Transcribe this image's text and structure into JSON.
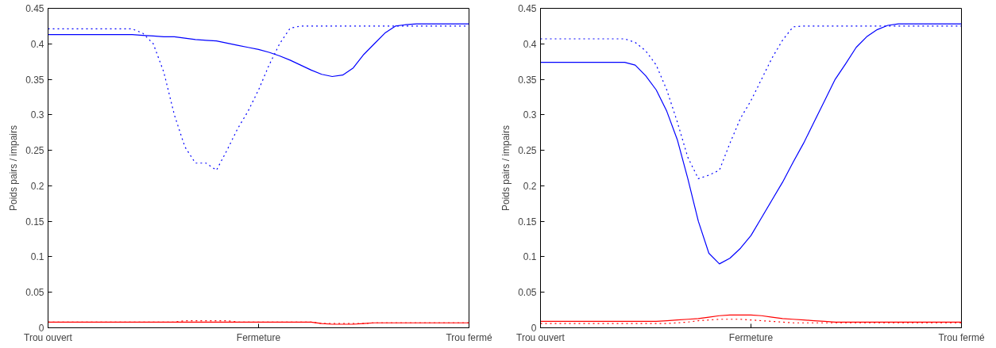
{
  "chart_data": [
    {
      "type": "line",
      "ylabel": "Poids pairs / impairs",
      "ylim": [
        0,
        0.45
      ],
      "categories": [
        "Trou ouvert",
        null,
        null,
        null,
        null,
        null,
        null,
        null,
        null,
        null,
        null,
        null,
        null,
        null,
        null,
        null,
        null,
        null,
        null,
        null,
        "Fermeture",
        null,
        null,
        null,
        null,
        null,
        null,
        null,
        null,
        null,
        null,
        null,
        null,
        null,
        null,
        null,
        null,
        null,
        null,
        null,
        "Trou fermé"
      ],
      "yticks": [
        0,
        0.05,
        0.1,
        0.15,
        0.2,
        0.25,
        0.3,
        0.35,
        0.4,
        0.45
      ],
      "grid": false,
      "marker": "none",
      "series": [
        {
          "color": "#0000ff",
          "line_style": "solid",
          "values": [
            0.413,
            0.413,
            0.413,
            0.413,
            0.413,
            0.413,
            0.413,
            0.413,
            0.413,
            0.412,
            0.411,
            0.41,
            0.41,
            0.408,
            0.406,
            0.405,
            0.404,
            0.401,
            0.398,
            0.395,
            0.392,
            0.388,
            0.383,
            0.377,
            0.37,
            0.363,
            0.357,
            0.354,
            0.356,
            0.366,
            0.385,
            0.4,
            0.415,
            0.425,
            0.427,
            0.428,
            0.428,
            0.428,
            0.428,
            0.428,
            0.428
          ]
        },
        {
          "color": "#0000ff",
          "line_style": "dotted",
          "values": [
            0.421,
            0.421,
            0.421,
            0.421,
            0.421,
            0.421,
            0.421,
            0.421,
            0.421,
            0.415,
            0.4,
            0.36,
            0.3,
            0.255,
            0.232,
            0.232,
            0.222,
            0.25,
            0.28,
            0.305,
            0.335,
            0.37,
            0.4,
            0.422,
            0.425,
            0.425,
            0.425,
            0.425,
            0.425,
            0.425,
            0.425,
            0.425,
            0.425,
            0.425,
            0.425,
            0.425,
            0.425,
            0.425,
            0.425,
            0.425,
            0.425
          ]
        },
        {
          "color": "#ff0000",
          "line_style": "solid",
          "values": [
            0.008,
            0.008,
            0.008,
            0.008,
            0.008,
            0.008,
            0.008,
            0.008,
            0.008,
            0.008,
            0.008,
            0.008,
            0.008,
            0.008,
            0.008,
            0.008,
            0.008,
            0.008,
            0.008,
            0.008,
            0.008,
            0.008,
            0.008,
            0.008,
            0.008,
            0.008,
            0.006,
            0.005,
            0.005,
            0.005,
            0.006,
            0.007,
            0.007,
            0.007,
            0.007,
            0.007,
            0.007,
            0.007,
            0.007,
            0.007,
            0.007
          ]
        },
        {
          "color": "#ff0000",
          "line_style": "dotted",
          "values": [
            0.008,
            0.008,
            0.008,
            0.008,
            0.008,
            0.008,
            0.008,
            0.008,
            0.008,
            0.008,
            0.008,
            0.008,
            0.008,
            0.01,
            0.01,
            0.01,
            0.01,
            0.01,
            0.008,
            0.008,
            0.008,
            0.008,
            0.008,
            0.008,
            0.008,
            0.008,
            0.006,
            0.006,
            0.006,
            0.006,
            0.006,
            0.007,
            0.007,
            0.007,
            0.007,
            0.007,
            0.007,
            0.007,
            0.007,
            0.007,
            0.007
          ]
        }
      ]
    },
    {
      "type": "line",
      "ylabel": "Poids pairs / impairs",
      "ylim": [
        0,
        0.45
      ],
      "categories": [
        "Trou ouvert",
        null,
        null,
        null,
        null,
        null,
        null,
        null,
        null,
        null,
        null,
        null,
        null,
        null,
        null,
        null,
        null,
        null,
        null,
        null,
        "Fermeture",
        null,
        null,
        null,
        null,
        null,
        null,
        null,
        null,
        null,
        null,
        null,
        null,
        null,
        null,
        null,
        null,
        null,
        null,
        null,
        "Trou fermé"
      ],
      "yticks": [
        0,
        0.05,
        0.1,
        0.15,
        0.2,
        0.25,
        0.3,
        0.35,
        0.4,
        0.45
      ],
      "grid": false,
      "marker": "none",
      "series": [
        {
          "color": "#0000ff",
          "line_style": "solid",
          "values": [
            0.374,
            0.374,
            0.374,
            0.374,
            0.374,
            0.374,
            0.374,
            0.374,
            0.374,
            0.37,
            0.355,
            0.335,
            0.305,
            0.265,
            0.21,
            0.15,
            0.105,
            0.09,
            0.098,
            0.112,
            0.13,
            0.155,
            0.18,
            0.205,
            0.233,
            0.26,
            0.29,
            0.32,
            0.35,
            0.372,
            0.395,
            0.41,
            0.42,
            0.426,
            0.428,
            0.428,
            0.428,
            0.428,
            0.428,
            0.428,
            0.428
          ]
        },
        {
          "color": "#0000ff",
          "line_style": "dotted",
          "values": [
            0.407,
            0.407,
            0.407,
            0.407,
            0.407,
            0.407,
            0.407,
            0.407,
            0.407,
            0.402,
            0.39,
            0.37,
            0.335,
            0.29,
            0.24,
            0.21,
            0.215,
            0.222,
            0.26,
            0.295,
            0.32,
            0.35,
            0.38,
            0.405,
            0.424,
            0.425,
            0.425,
            0.425,
            0.425,
            0.425,
            0.425,
            0.425,
            0.425,
            0.425,
            0.425,
            0.425,
            0.425,
            0.425,
            0.425,
            0.425,
            0.425
          ]
        },
        {
          "color": "#ff0000",
          "line_style": "solid",
          "values": [
            0.009,
            0.009,
            0.009,
            0.009,
            0.009,
            0.009,
            0.009,
            0.009,
            0.009,
            0.009,
            0.009,
            0.009,
            0.01,
            0.011,
            0.012,
            0.013,
            0.015,
            0.017,
            0.018,
            0.018,
            0.018,
            0.017,
            0.015,
            0.013,
            0.012,
            0.011,
            0.01,
            0.009,
            0.008,
            0.008,
            0.008,
            0.008,
            0.008,
            0.008,
            0.008,
            0.008,
            0.008,
            0.008,
            0.008,
            0.008,
            0.008
          ]
        },
        {
          "color": "#ff0000",
          "line_style": "dotted",
          "values": [
            0.006,
            0.006,
            0.006,
            0.006,
            0.006,
            0.006,
            0.006,
            0.006,
            0.006,
            0.006,
            0.006,
            0.006,
            0.006,
            0.007,
            0.008,
            0.01,
            0.011,
            0.012,
            0.012,
            0.012,
            0.011,
            0.01,
            0.009,
            0.008,
            0.007,
            0.007,
            0.007,
            0.007,
            0.007,
            0.007,
            0.007,
            0.007,
            0.007,
            0.007,
            0.007,
            0.007,
            0.007,
            0.007,
            0.007,
            0.007,
            0.007
          ]
        }
      ]
    }
  ]
}
